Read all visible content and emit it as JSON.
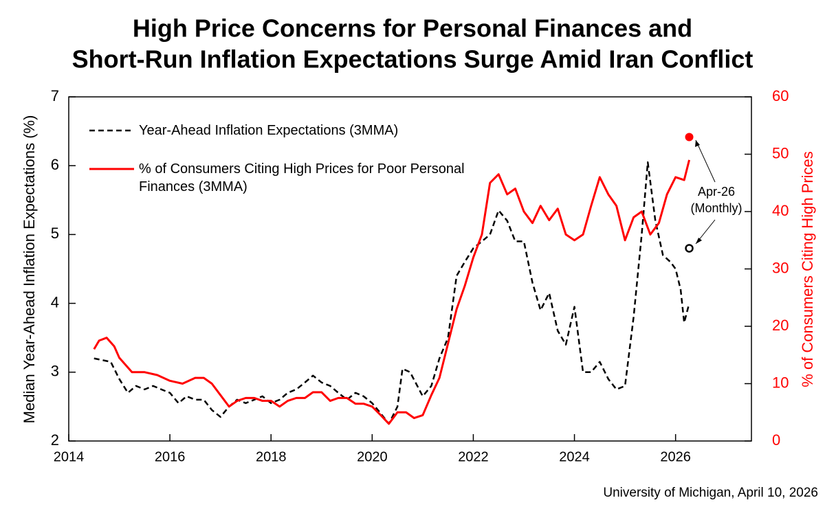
{
  "chart_data": {
    "type": "line",
    "title": [
      "High Price Concerns for Personal Finances and",
      "Short-Run Inflation Expectations Surge Amid Iran Conflict"
    ],
    "ylabel": "Median Year-Ahead Inflation Expectations (%)",
    "y2label": "% of Consumers Citing High Prices",
    "source": "University of Michigan, April 10, 2026",
    "xlim": [
      2014,
      2027.5
    ],
    "xticks": [
      2014,
      2016,
      2018,
      2020,
      2022,
      2024,
      2026
    ],
    "ylim": [
      2,
      7
    ],
    "yticks": [
      2,
      3,
      4,
      5,
      6,
      7
    ],
    "y2lim": [
      0,
      60
    ],
    "y2ticks": [
      0,
      10,
      20,
      30,
      40,
      50,
      60
    ],
    "series": [
      {
        "name": "Year-Ahead Inflation Expectations (3MMA)",
        "color": "#000000",
        "dash": true,
        "x": [
          2014.5,
          2014.83,
          2015.0,
          2015.17,
          2015.33,
          2015.5,
          2015.67,
          2015.83,
          2016.0,
          2016.17,
          2016.33,
          2016.5,
          2016.67,
          2016.83,
          2017.0,
          2017.17,
          2017.33,
          2017.5,
          2017.67,
          2017.83,
          2018.0,
          2018.17,
          2018.33,
          2018.5,
          2018.67,
          2018.83,
          2019.0,
          2019.17,
          2019.33,
          2019.5,
          2019.67,
          2019.83,
          2020.0,
          2020.17,
          2020.33,
          2020.5,
          2020.6,
          2020.75,
          2021.0,
          2021.17,
          2021.33,
          2021.5,
          2021.67,
          2021.83,
          2022.0,
          2022.17,
          2022.33,
          2022.5,
          2022.67,
          2022.83,
          2023.0,
          2023.17,
          2023.33,
          2023.5,
          2023.67,
          2023.83,
          2024.0,
          2024.17,
          2024.33,
          2024.5,
          2024.67,
          2024.83,
          2025.0,
          2025.17,
          2025.33,
          2025.45,
          2025.6,
          2025.75,
          2025.9,
          2026.0,
          2026.1,
          2026.17,
          2026.27
        ],
        "values": [
          3.2,
          3.15,
          2.9,
          2.7,
          2.8,
          2.75,
          2.8,
          2.75,
          2.7,
          2.55,
          2.65,
          2.6,
          2.6,
          2.45,
          2.35,
          2.5,
          2.6,
          2.55,
          2.6,
          2.65,
          2.55,
          2.6,
          2.7,
          2.75,
          2.85,
          2.95,
          2.85,
          2.8,
          2.7,
          2.6,
          2.7,
          2.65,
          2.55,
          2.4,
          2.25,
          2.5,
          3.05,
          3.0,
          2.65,
          2.8,
          3.2,
          3.5,
          4.4,
          4.6,
          4.8,
          4.9,
          5.0,
          5.35,
          5.2,
          4.9,
          4.9,
          4.3,
          3.9,
          4.15,
          3.6,
          3.4,
          3.95,
          3.0,
          3.0,
          3.15,
          2.9,
          2.75,
          2.8,
          3.8,
          5.0,
          6.05,
          5.2,
          4.7,
          4.6,
          4.5,
          4.2,
          3.72,
          4.0
        ],
        "axis": "y"
      },
      {
        "name": "% of Consumers Citing High Prices for Poor Personal Finances (3MMA)",
        "color": "#ff0000",
        "dash": false,
        "x": [
          2014.5,
          2014.6,
          2014.75,
          2014.9,
          2015.0,
          2015.25,
          2015.5,
          2015.75,
          2016.0,
          2016.25,
          2016.5,
          2016.67,
          2016.83,
          2017.0,
          2017.17,
          2017.33,
          2017.5,
          2017.67,
          2017.83,
          2018.0,
          2018.17,
          2018.33,
          2018.5,
          2018.67,
          2018.83,
          2019.0,
          2019.17,
          2019.33,
          2019.5,
          2019.67,
          2019.83,
          2020.0,
          2020.17,
          2020.33,
          2020.5,
          2020.67,
          2020.83,
          2021.0,
          2021.17,
          2021.33,
          2021.5,
          2021.67,
          2021.83,
          2022.0,
          2022.17,
          2022.33,
          2022.5,
          2022.67,
          2022.83,
          2023.0,
          2023.17,
          2023.33,
          2023.5,
          2023.67,
          2023.83,
          2024.0,
          2024.17,
          2024.33,
          2024.5,
          2024.67,
          2024.83,
          2025.0,
          2025.17,
          2025.33,
          2025.5,
          2025.67,
          2025.83,
          2026.0,
          2026.17,
          2026.27
        ],
        "values": [
          16,
          17.5,
          18,
          16.5,
          14.5,
          12,
          12,
          11.5,
          10.5,
          10,
          11,
          11,
          10,
          8,
          6,
          7,
          7.5,
          7.5,
          7,
          7,
          6,
          7,
          7.5,
          7.5,
          8.5,
          8.5,
          7,
          7.5,
          7.5,
          6.5,
          6.5,
          6,
          4.5,
          3,
          5,
          5,
          4,
          4.5,
          8,
          11,
          17,
          23,
          27,
          32,
          36,
          45,
          46.5,
          43,
          44,
          40,
          38,
          41,
          38.5,
          40.5,
          36,
          35,
          36,
          41,
          46,
          43,
          41,
          35,
          39,
          40,
          36,
          38,
          43,
          46,
          45.5,
          49
        ],
        "axis": "y2"
      }
    ],
    "apr26_monthly": {
      "label": [
        "Apr-26",
        "(Monthly)"
      ],
      "x": 2026.27,
      "inflation": 4.8,
      "high_prices": 53
    }
  }
}
